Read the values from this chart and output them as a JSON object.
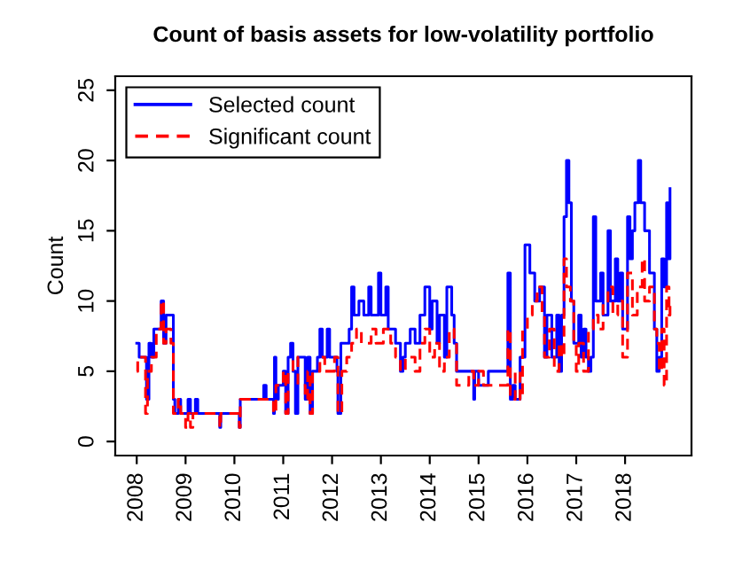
{
  "chart_data": {
    "type": "step",
    "title": "Count of basis assets for low-volatility portfolio",
    "ylabel": "Count",
    "xlim": [
      2007.56,
      2019.36
    ],
    "xticks": [
      2008,
      2009,
      2010,
      2011,
      2012,
      2013,
      2014,
      2015,
      2016,
      2017,
      2018
    ],
    "ylim": [
      -1,
      26
    ],
    "yticks": [
      0,
      5,
      10,
      15,
      20,
      25
    ],
    "grid": false,
    "legend": "top left",
    "series": [
      {
        "name": "Selected count",
        "color": "#0000ff",
        "line_style": "solid",
        "x": [
          2008.0,
          2008.05,
          2008.15,
          2008.2,
          2008.25,
          2008.3,
          2008.35,
          2008.45,
          2008.5,
          2008.55,
          2008.6,
          2008.7,
          2008.75,
          2008.78,
          2008.85,
          2008.9,
          2009.0,
          2009.05,
          2009.1,
          2009.2,
          2009.25,
          2009.7,
          2009.72,
          2010.1,
          2010.12,
          2010.6,
          2010.65,
          2010.8,
          2010.82,
          2010.85,
          2010.9,
          2011.0,
          2011.05,
          2011.1,
          2011.15,
          2011.2,
          2011.25,
          2011.3,
          2011.45,
          2011.5,
          2011.55,
          2011.6,
          2011.7,
          2011.75,
          2011.8,
          2011.9,
          2011.95,
          2012.1,
          2012.12,
          2012.18,
          2012.35,
          2012.4,
          2012.45,
          2012.55,
          2012.65,
          2012.75,
          2012.8,
          2012.95,
          2013.0,
          2013.1,
          2013.15,
          2013.3,
          2013.4,
          2013.45,
          2013.5,
          2013.6,
          2013.7,
          2013.8,
          2013.9,
          2014.0,
          2014.05,
          2014.15,
          2014.2,
          2014.3,
          2014.35,
          2014.45,
          2014.5,
          2014.55,
          2014.9,
          2014.92,
          2015.0,
          2015.2,
          2015.6,
          2015.65,
          2015.7,
          2015.75,
          2015.85,
          2015.95,
          2016.05,
          2016.15,
          2016.25,
          2016.35,
          2016.4,
          2016.5,
          2016.6,
          2016.65,
          2016.7,
          2016.75,
          2016.8,
          2016.85,
          2016.9,
          2016.95,
          2017.05,
          2017.1,
          2017.15,
          2017.2,
          2017.25,
          2017.3,
          2017.35,
          2017.4,
          2017.5,
          2017.55,
          2017.65,
          2017.7,
          2017.8,
          2017.85,
          2017.9,
          2017.95,
          2018.05,
          2018.1,
          2018.15,
          2018.2,
          2018.27,
          2018.32,
          2018.4,
          2018.5,
          2018.6,
          2018.65,
          2018.7,
          2018.75,
          2018.8,
          2018.85,
          2018.88,
          2018.92
        ],
        "values": [
          7,
          6,
          6,
          3,
          7,
          6,
          8,
          8,
          10,
          7,
          9,
          9,
          3,
          2,
          3,
          2,
          2,
          3,
          2,
          3,
          2,
          1,
          2,
          1,
          3,
          4,
          3,
          2,
          6,
          3,
          4,
          5,
          2,
          6,
          7,
          5,
          2,
          6,
          3,
          6,
          2,
          5,
          6,
          8,
          6,
          8,
          6,
          5,
          2,
          7,
          8,
          11,
          9,
          10,
          9,
          11,
          9,
          12,
          9,
          11,
          8,
          7,
          5,
          6,
          7,
          8,
          7,
          9,
          11,
          8,
          10,
          7,
          9,
          6,
          11,
          9,
          7,
          5,
          3,
          5,
          4,
          5,
          12,
          3,
          4,
          3,
          6,
          14,
          12,
          10,
          11,
          6,
          9,
          6,
          9,
          5,
          9,
          16,
          20,
          17,
          10,
          7,
          9,
          6,
          8,
          6,
          5,
          6,
          16,
          10,
          12,
          9,
          15,
          10,
          13,
          10,
          12,
          8,
          16,
          13,
          15,
          17,
          20,
          17,
          15,
          12,
          8,
          5,
          6,
          13,
          11,
          17,
          13,
          18
        ]
      },
      {
        "name": "Significant count",
        "color": "#ff0000",
        "line_style": "dashed",
        "x": [
          2008.0,
          2008.02,
          2008.15,
          2008.18,
          2008.22,
          2008.3,
          2008.4,
          2008.5,
          2008.55,
          2008.6,
          2008.7,
          2008.75,
          2008.85,
          2008.9,
          2009.0,
          2009.05,
          2009.1,
          2009.15,
          2009.7,
          2009.72,
          2010.1,
          2010.12,
          2010.8,
          2010.85,
          2011.0,
          2011.05,
          2011.1,
          2011.2,
          2011.3,
          2011.45,
          2011.5,
          2011.55,
          2011.6,
          2011.75,
          2011.85,
          2012.05,
          2012.12,
          2012.2,
          2012.3,
          2012.4,
          2012.5,
          2012.6,
          2012.8,
          2012.9,
          2013.05,
          2013.2,
          2013.3,
          2013.4,
          2013.5,
          2013.7,
          2013.8,
          2013.9,
          2014.0,
          2014.1,
          2014.2,
          2014.3,
          2014.4,
          2014.5,
          2014.55,
          2014.8,
          2014.9,
          2015.0,
          2015.1,
          2015.5,
          2015.6,
          2015.65,
          2015.75,
          2015.85,
          2015.9,
          2016.0,
          2016.1,
          2016.2,
          2016.3,
          2016.35,
          2016.45,
          2016.55,
          2016.65,
          2016.7,
          2016.75,
          2016.8,
          2016.88,
          2016.95,
          2017.0,
          2017.05,
          2017.15,
          2017.25,
          2017.35,
          2017.45,
          2017.55,
          2017.65,
          2017.75,
          2017.85,
          2017.95,
          2018.05,
          2018.15,
          2018.25,
          2018.35,
          2018.4,
          2018.5,
          2018.6,
          2018.65,
          2018.7,
          2018.75,
          2018.8,
          2018.85,
          2018.9,
          2018.92
        ],
        "values": [
          5,
          6,
          6,
          2,
          5,
          6,
          8,
          10,
          7,
          8,
          7,
          2,
          3,
          2,
          1,
          2,
          1,
          2,
          1,
          2,
          1,
          3,
          2,
          4,
          5,
          2,
          5,
          6,
          4,
          3,
          5,
          2,
          5,
          6,
          5,
          6,
          2,
          5,
          6,
          7,
          8,
          7,
          8,
          7,
          8,
          7,
          6,
          5,
          6,
          5,
          7,
          8,
          6,
          7,
          5,
          6,
          8,
          7,
          4,
          5,
          4,
          5,
          4,
          4,
          8,
          3,
          5,
          3,
          8,
          9,
          10,
          11,
          9,
          6,
          8,
          5,
          7,
          6,
          13,
          11,
          10,
          7,
          5,
          7,
          5,
          8,
          9,
          8,
          10,
          11,
          9,
          10,
          6,
          12,
          9,
          11,
          13,
          10,
          11,
          8,
          7,
          5,
          8,
          4,
          11,
          9,
          10
        ]
      }
    ]
  }
}
